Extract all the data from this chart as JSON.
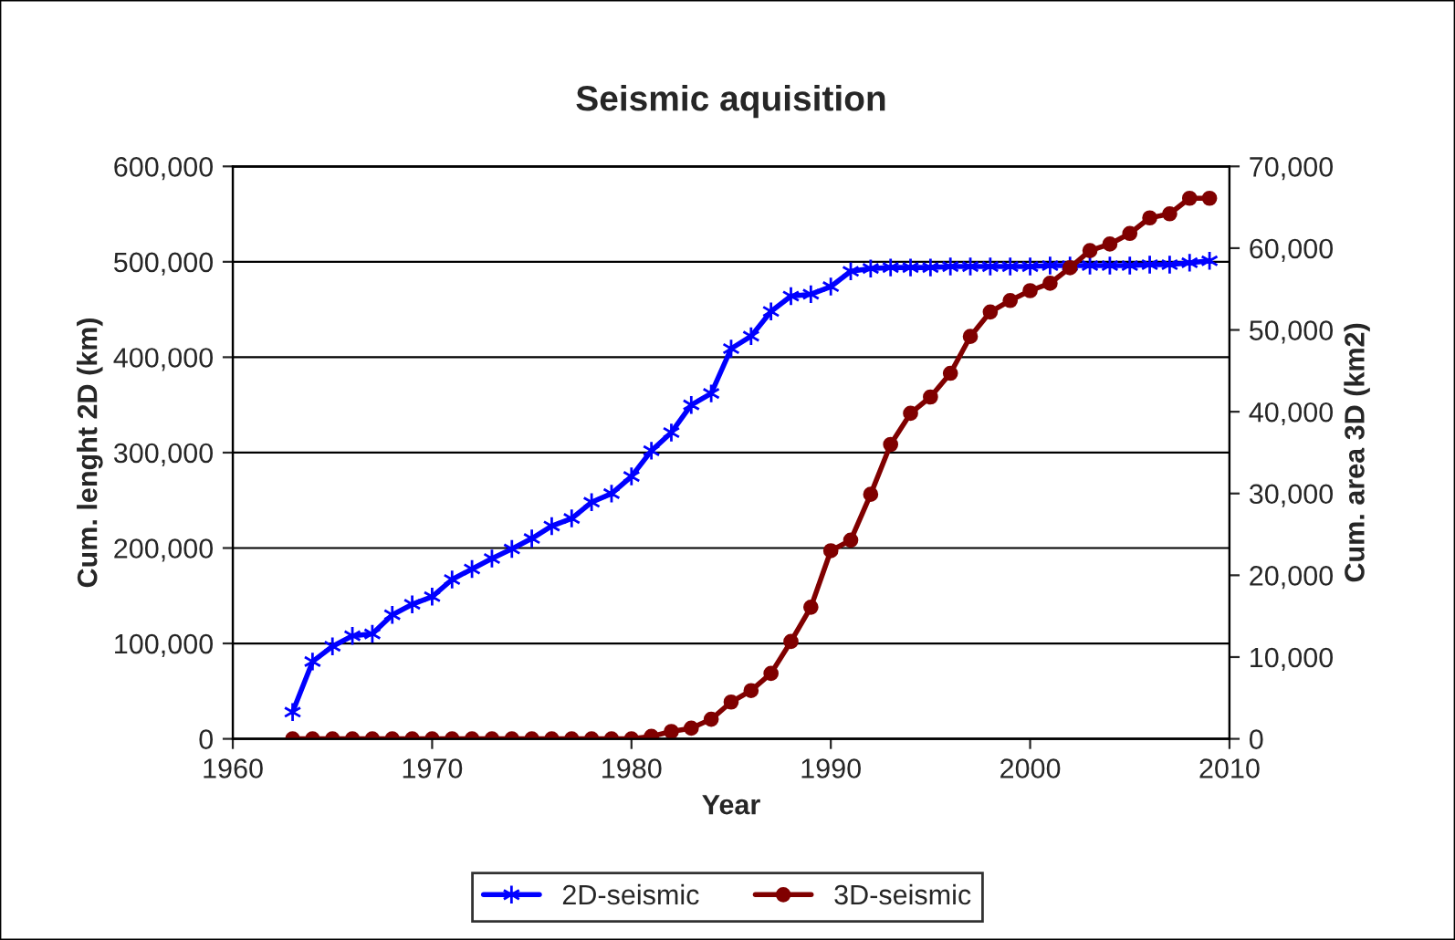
{
  "chart_data": {
    "type": "line",
    "title": "Seismic aquisition",
    "xlabel": "Year",
    "ylabel": "Cum. lenght 2D (km)",
    "y2label": "Cum. area 3D (km2)",
    "x": [
      1963,
      1964,
      1965,
      1966,
      1967,
      1968,
      1969,
      1970,
      1971,
      1972,
      1973,
      1974,
      1975,
      1976,
      1977,
      1978,
      1979,
      1980,
      1981,
      1982,
      1983,
      1984,
      1985,
      1986,
      1987,
      1988,
      1989,
      1990,
      1991,
      1992,
      1993,
      1994,
      1995,
      1996,
      1997,
      1998,
      1999,
      2000,
      2001,
      2002,
      2003,
      2004,
      2005,
      2006,
      2007,
      2008,
      2009
    ],
    "series": [
      {
        "name": "2D-seismic",
        "color": "#0000ff",
        "marker": "cross",
        "values": [
          28000,
          81000,
          97000,
          108000,
          110000,
          130000,
          141000,
          149000,
          167000,
          178000,
          189000,
          199000,
          210000,
          223000,
          231000,
          248000,
          257000,
          275000,
          302000,
          321000,
          350000,
          362000,
          409000,
          422000,
          448000,
          464000,
          466000,
          474000,
          490000,
          493000,
          494000,
          494000,
          494000,
          495000,
          495000,
          495000,
          495000,
          495000,
          496000,
          496000,
          496000,
          496000,
          496000,
          497000,
          497000,
          499000,
          501000
        ]
      },
      {
        "name": "3D-seismic",
        "color": "#800000",
        "marker": "circle",
        "axis": "y2",
        "values": [
          0,
          0,
          0,
          0,
          0,
          0,
          0,
          0,
          0,
          0,
          0,
          0,
          0,
          0,
          0,
          0,
          0,
          0,
          300,
          900,
          1300,
          2400,
          4500,
          5900,
          8000,
          11900,
          16100,
          23000,
          24300,
          29900,
          36000,
          39800,
          41800,
          44700,
          49200,
          52200,
          53600,
          54800,
          55700,
          57600,
          59700,
          60500,
          61800,
          63700,
          64200,
          66100,
          66100
        ]
      }
    ],
    "xlim": [
      1960,
      2010
    ],
    "xticks": [
      1960,
      1970,
      1980,
      1990,
      2000,
      2010
    ],
    "ylim": [
      0,
      600000
    ],
    "yticks": [
      {
        "value": 0,
        "label": "0"
      },
      {
        "value": 100000,
        "label": "100,000"
      },
      {
        "value": 200000,
        "label": "200,000"
      },
      {
        "value": 300000,
        "label": "300,000"
      },
      {
        "value": 400000,
        "label": "400,000"
      },
      {
        "value": 500000,
        "label": "500,000"
      },
      {
        "value": 600000,
        "label": "600,000"
      }
    ],
    "y2lim": [
      0,
      70000
    ],
    "y2ticks": [
      {
        "value": 0,
        "label": "0"
      },
      {
        "value": 10000,
        "label": "10,000"
      },
      {
        "value": 20000,
        "label": "20,000"
      },
      {
        "value": 30000,
        "label": "30,000"
      },
      {
        "value": 40000,
        "label": "40,000"
      },
      {
        "value": 50000,
        "label": "50,000"
      },
      {
        "value": 60000,
        "label": "60,000"
      },
      {
        "value": 70000,
        "label": "70,000"
      }
    ],
    "grid": "y",
    "legend": "bottom",
    "line_style": "solid"
  }
}
